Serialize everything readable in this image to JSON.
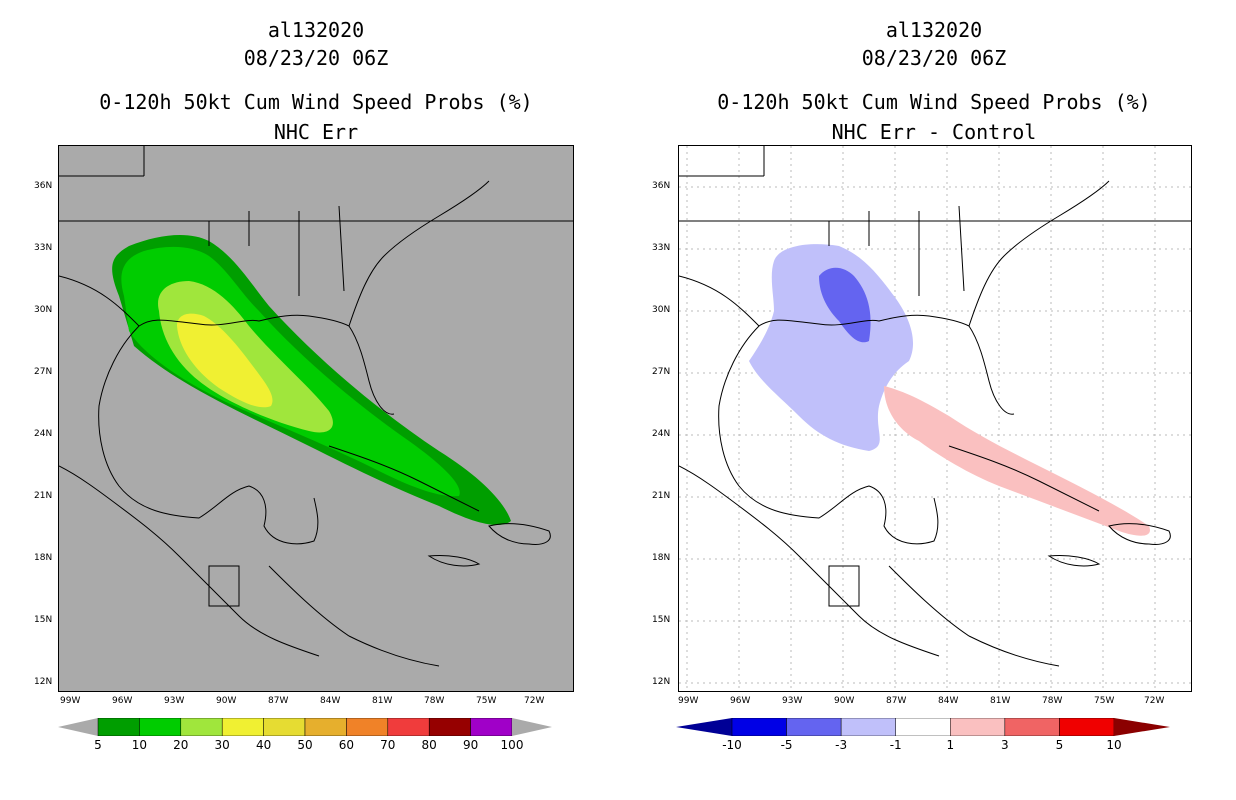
{
  "left_panel": {
    "storm_id": "al132020",
    "datetime": "08/23/20 06Z",
    "product": "0-120h 50kt Cum Wind Speed Probs (%)",
    "subtitle": "NHC Err"
  },
  "right_panel": {
    "storm_id": "al132020",
    "datetime": "08/23/20 06Z",
    "product": "0-120h 50kt Cum Wind Speed Probs (%)",
    "subtitle": "NHC Err - Control"
  },
  "lat_ticks": [
    "36N",
    "33N",
    "30N",
    "27N",
    "24N",
    "21N",
    "18N",
    "15N",
    "12N"
  ],
  "lon_ticks": [
    "99W",
    "96W",
    "93W",
    "90W",
    "87W",
    "84W",
    "81W",
    "78W",
    "75W",
    "72W"
  ],
  "left_colorbar": {
    "labels": [
      "5",
      "10",
      "20",
      "30",
      "40",
      "50",
      "60",
      "70",
      "80",
      "90",
      "100"
    ],
    "colors": [
      "#009e00",
      "#00cc00",
      "#a0e63c",
      "#f0f032",
      "#e6dc32",
      "#e6af2d",
      "#f08228",
      "#f03c3c",
      "#960000",
      "#a000c8"
    ],
    "end_color": "#aaaaaa"
  },
  "right_colorbar": {
    "labels": [
      "-10",
      "-5",
      "-3",
      "-1",
      "1",
      "3",
      "5",
      "10"
    ],
    "colors": [
      "#0000e6",
      "#6464f0",
      "#c0c0fa",
      "#ffffff",
      "#fac0c0",
      "#f06464",
      "#f00000"
    ],
    "low_end_color": "#000096",
    "high_end_color": "#8b0000"
  }
}
